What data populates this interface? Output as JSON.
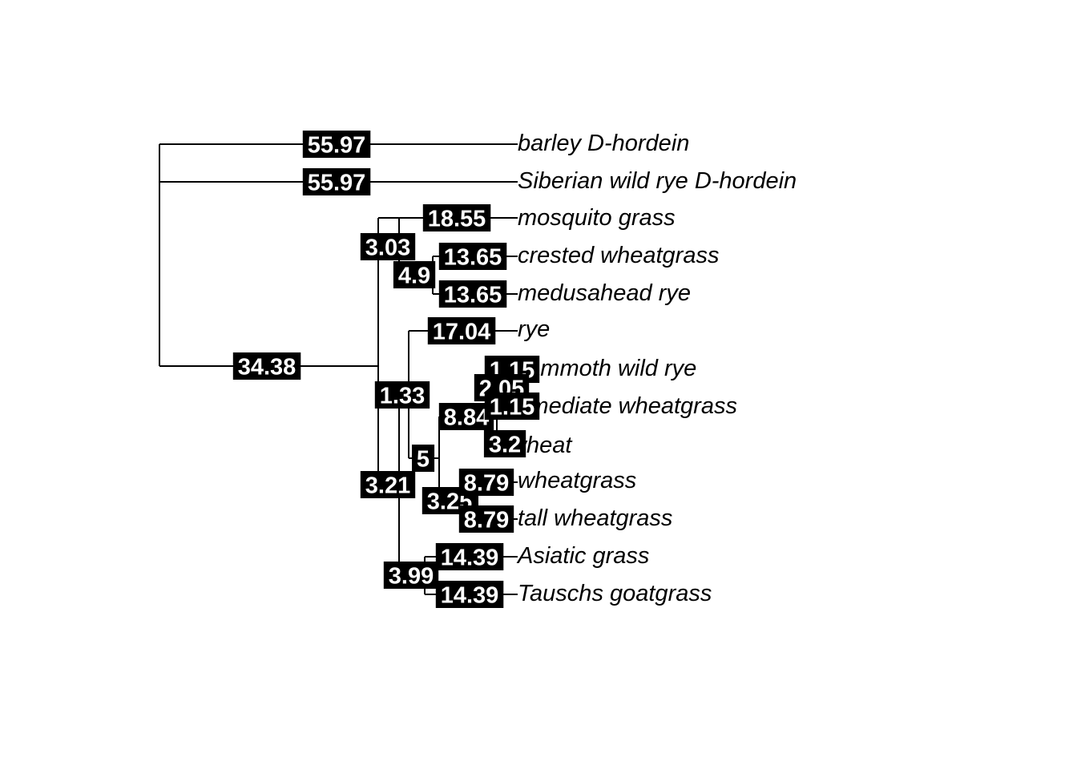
{
  "tree": {
    "tips": [
      {
        "id": "t1",
        "label": "barley D-hordein",
        "edge_length": "55.97"
      },
      {
        "id": "t2",
        "label": "Siberian wild rye D-hordein",
        "edge_length": "55.97"
      },
      {
        "id": "t3",
        "label": "mosquito grass",
        "edge_length": "18.55"
      },
      {
        "id": "t4",
        "label": "crested wheatgrass",
        "edge_length": "13.65"
      },
      {
        "id": "t5",
        "label": "medusahead rye",
        "edge_length": "13.65"
      },
      {
        "id": "t6",
        "label": "rye",
        "edge_length": "17.04"
      },
      {
        "id": "t7",
        "label": "mammoth wild rye",
        "edge_length": "1.15"
      },
      {
        "id": "t8",
        "label": "intermediate wheatgrass",
        "edge_length": "1.15"
      },
      {
        "id": "t9",
        "label": "wheat",
        "edge_length": "3.2"
      },
      {
        "id": "t10",
        "label": "wheatgrass",
        "edge_length": "8.79"
      },
      {
        "id": "t11",
        "label": "tall wheatgrass",
        "edge_length": "8.79"
      },
      {
        "id": "t12",
        "label": "Asiatic grass",
        "edge_length": "14.39"
      },
      {
        "id": "t13",
        "label": "Tauschs goatgrass",
        "edge_length": "14.39"
      }
    ],
    "internal_edges": [
      {
        "id": "n_main",
        "edge_length": "34.38"
      },
      {
        "id": "n_a",
        "edge_length": "3.03"
      },
      {
        "id": "n_cm",
        "edge_length": "4.9"
      },
      {
        "id": "n_b",
        "edge_length": "3.21"
      },
      {
        "id": "n_c",
        "edge_length": "1.33"
      },
      {
        "id": "n_d",
        "edge_length": "5"
      },
      {
        "id": "n_e",
        "edge_length": "8.84"
      },
      {
        "id": "n_mi",
        "edge_length": "2.05"
      },
      {
        "id": "n_w",
        "edge_length": "3.25"
      },
      {
        "id": "n_at",
        "edge_length": "3.99"
      }
    ]
  }
}
